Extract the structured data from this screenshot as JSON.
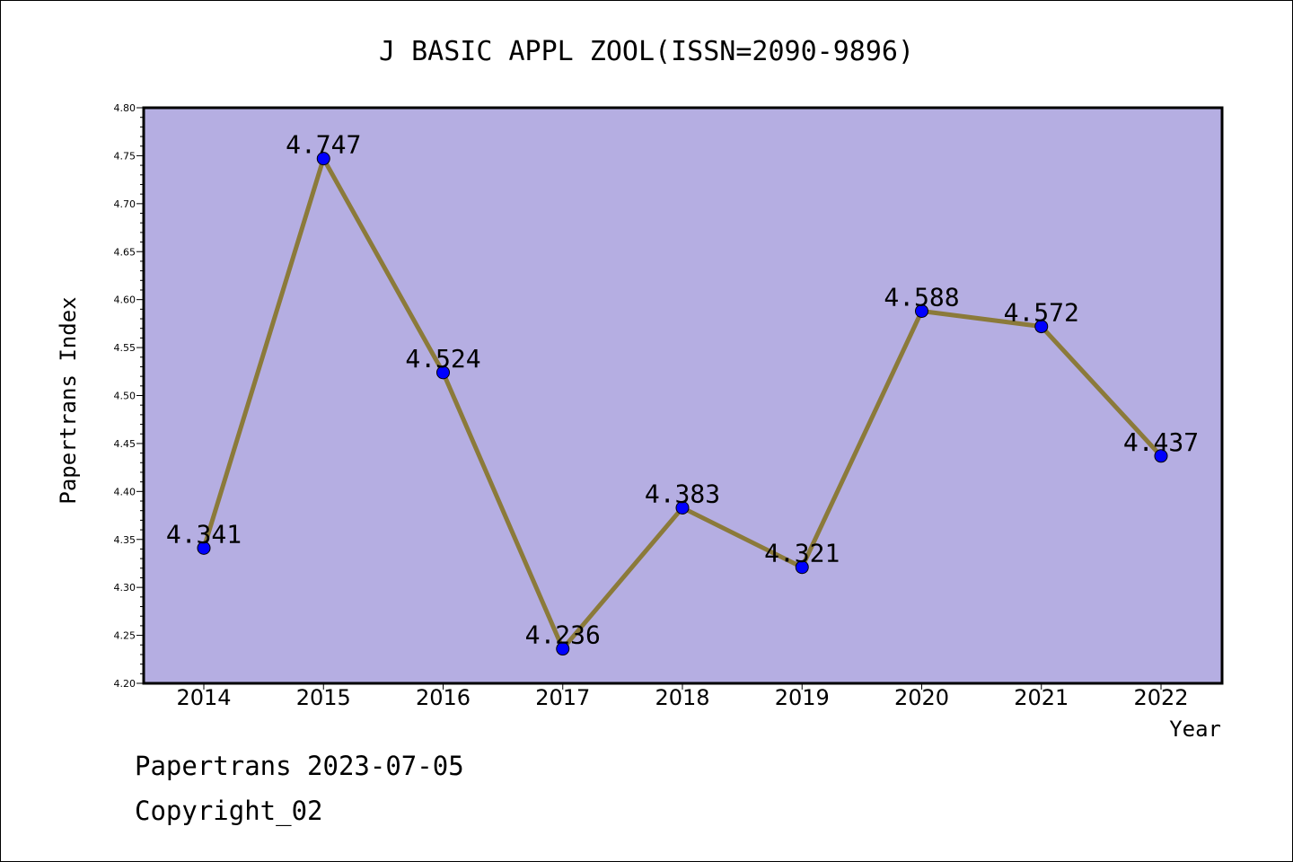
{
  "chart_data": {
    "type": "line",
    "title": "J BASIC APPL ZOOL(ISSN=2090-9896)",
    "xlabel": "Year",
    "ylabel": "Papertrans Index",
    "categories": [
      "2014",
      "2015",
      "2016",
      "2017",
      "2018",
      "2019",
      "2020",
      "2021",
      "2022"
    ],
    "series": [
      {
        "values": [
          4.341,
          4.747,
          4.524,
          4.236,
          4.383,
          4.321,
          4.588,
          4.572,
          4.437
        ],
        "labels": [
          "4.341",
          "4.747",
          "4.524",
          "4.236",
          "4.383",
          "4.321",
          "4.588",
          "4.572",
          "4.437"
        ],
        "line_color": "#8b7a3a",
        "marker_color": "#0000ff"
      }
    ],
    "ylim": [
      4.2,
      4.8
    ],
    "yticks": [
      "4.20",
      "4.25",
      "4.30",
      "4.35",
      "4.40",
      "4.45",
      "4.50",
      "4.55",
      "4.60",
      "4.65",
      "4.70",
      "4.75",
      "4.80"
    ],
    "grid": false,
    "plot_background": "#b5aee2"
  },
  "footer": {
    "line1": "Papertrans 2023-07-05",
    "line2": "Copyright_02"
  }
}
